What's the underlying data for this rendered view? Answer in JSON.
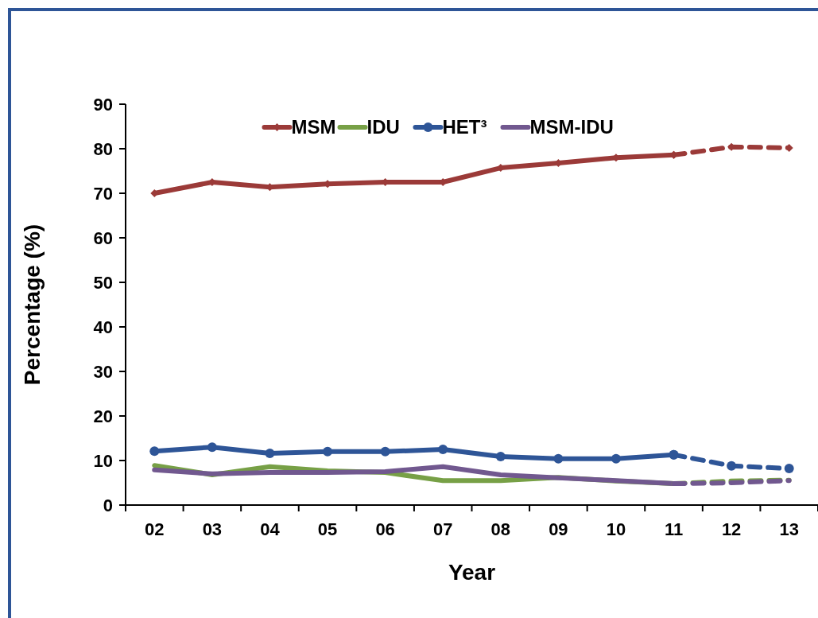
{
  "chart_data": {
    "type": "line",
    "xlabel": "Year",
    "ylabel": "Percentage (%)",
    "categories": [
      "02",
      "03",
      "04",
      "05",
      "06",
      "07",
      "08",
      "09",
      "10",
      "11",
      "12",
      "13"
    ],
    "ylim": [
      0,
      90
    ],
    "yticks": [
      0,
      10,
      20,
      30,
      40,
      50,
      60,
      70,
      80,
      90
    ],
    "grid": false,
    "legend": "top",
    "line_style": "solid",
    "series": [
      {
        "name": "MSM",
        "color": "#9b3a38",
        "marker": "diamond",
        "values": [
          70.0,
          72.5,
          71.4,
          72.1,
          72.5,
          72.5,
          75.7,
          76.8,
          78.0,
          78.6,
          null,
          null
        ]
      },
      {
        "name": "IDU",
        "color": "#77a046",
        "marker": "none",
        "values": [
          8.9,
          6.8,
          8.6,
          7.7,
          7.3,
          5.5,
          5.5,
          6.2,
          5.4,
          4.8,
          null,
          null
        ]
      },
      {
        "name": "HET³",
        "color": "#2e5597",
        "marker": "circle",
        "values": [
          12.1,
          13.0,
          11.6,
          12.0,
          12.0,
          12.5,
          10.9,
          10.4,
          10.4,
          11.3,
          null,
          null
        ]
      },
      {
        "name": "MSM-IDU",
        "color": "#71588f",
        "marker": "none",
        "values": [
          7.9,
          7.0,
          7.3,
          7.3,
          7.5,
          8.6,
          6.8,
          6.1,
          5.5,
          4.8,
          null,
          null
        ]
      },
      {
        "color": "#9b3a38",
        "marker": "diamond",
        "line_style": "dashed",
        "values": [
          null,
          null,
          null,
          null,
          null,
          null,
          null,
          null,
          null,
          78.6,
          80.4,
          80.2
        ]
      },
      {
        "color": "#77a046",
        "marker": "none",
        "line_style": "dashed",
        "values": [
          null,
          null,
          null,
          null,
          null,
          null,
          null,
          null,
          null,
          4.8,
          5.4,
          5.6
        ]
      },
      {
        "color": "#2e5597",
        "marker": "circle",
        "line_style": "dashed",
        "values": [
          null,
          null,
          null,
          null,
          null,
          null,
          null,
          null,
          null,
          11.3,
          8.8,
          8.2
        ]
      },
      {
        "color": "#71588f",
        "marker": "none",
        "line_style": "dashed",
        "values": [
          null,
          null,
          null,
          null,
          null,
          null,
          null,
          null,
          null,
          4.8,
          5.0,
          5.5
        ]
      }
    ]
  }
}
